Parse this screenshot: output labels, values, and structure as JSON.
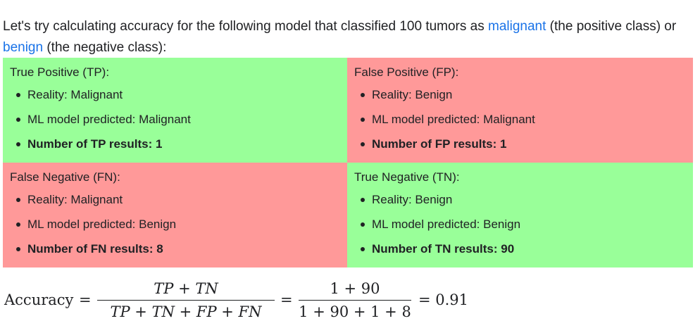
{
  "intro": {
    "before": "Let's try calculating accuracy for the following model that classified 100 tumors as ",
    "positive_term": "malignant",
    "middle": " (the positive class) or ",
    "negative_term": "benign",
    "after": " (the negative class):"
  },
  "cells": {
    "tp": {
      "title": "True Positive (TP):",
      "reality": "Reality: Malignant",
      "predicted": "ML model predicted: Malignant",
      "count": "Number of TP results: 1"
    },
    "fp": {
      "title": "False Positive (FP):",
      "reality": "Reality: Benign",
      "predicted": "ML model predicted: Malignant",
      "count": "Number of FP results: 1"
    },
    "fn": {
      "title": "False Negative (FN):",
      "reality": "Reality: Malignant",
      "predicted": "ML model predicted: Benign",
      "count": "Number of FN results: 8"
    },
    "tn": {
      "title": "True Negative (TN):",
      "reality": "Reality: Benign",
      "predicted": "ML model predicted: Benign",
      "count": "Number of TN results: 90"
    }
  },
  "colors": {
    "correct": "#99ff99",
    "incorrect": "#ff9999",
    "link": "#1a73e8"
  },
  "formula": {
    "lhs": "Accuracy",
    "eq": "=",
    "frac1_num": "TP + TN",
    "frac1_den": "TP + TN + FP + FN",
    "frac2_num": "1 + 90",
    "frac2_den": "1 + 90 + 1 + 8",
    "result": "= 0.91"
  }
}
